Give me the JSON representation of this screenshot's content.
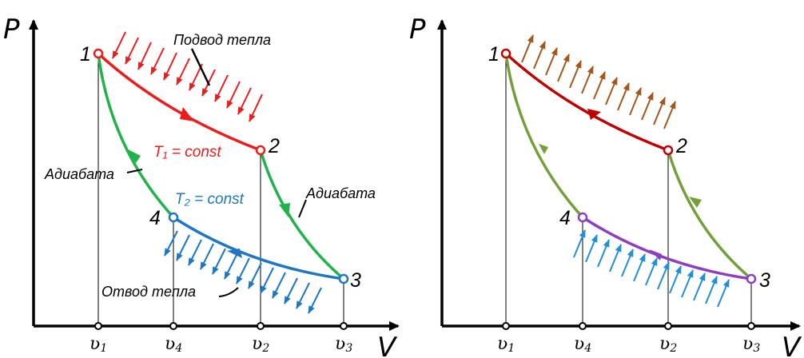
{
  "colors": {
    "red": "#ee1c1c",
    "green": "#1fb34a",
    "blue": "#1d77c4",
    "dark_red": "#c00000",
    "olive": "#73a03a",
    "purple": "#8e3fbf",
    "brown": "#a2571e",
    "light_blue": "#1f8fd9"
  },
  "left": {
    "y_axis_label": "P",
    "x_axis_label": "V",
    "points": [
      "1",
      "2",
      "3",
      "4"
    ],
    "heat_in_label": "Подвод тепла",
    "heat_out_label": "Отвод тепла",
    "adiabat_left_label": "Адиабата",
    "adiabat_right_label": "Адиабата",
    "t1_label": "T₁ = const",
    "t2_label": "T₂ = const",
    "ticks": [
      {
        "letter": "ʋ",
        "sub": "1"
      },
      {
        "letter": "ʋ",
        "sub": "4"
      },
      {
        "letter": "ʋ",
        "sub": "2"
      },
      {
        "letter": "ʋ",
        "sub": "3"
      }
    ]
  },
  "right": {
    "y_axis_label": "P",
    "x_axis_label": "V",
    "points": [
      "1",
      "2",
      "3",
      "4"
    ],
    "ticks": [
      {
        "letter": "ʋ",
        "sub": "1"
      },
      {
        "letter": "ʋ",
        "sub": "4"
      },
      {
        "letter": "ʋ",
        "sub": "2"
      },
      {
        "letter": "ʋ",
        "sub": "3"
      }
    ]
  }
}
